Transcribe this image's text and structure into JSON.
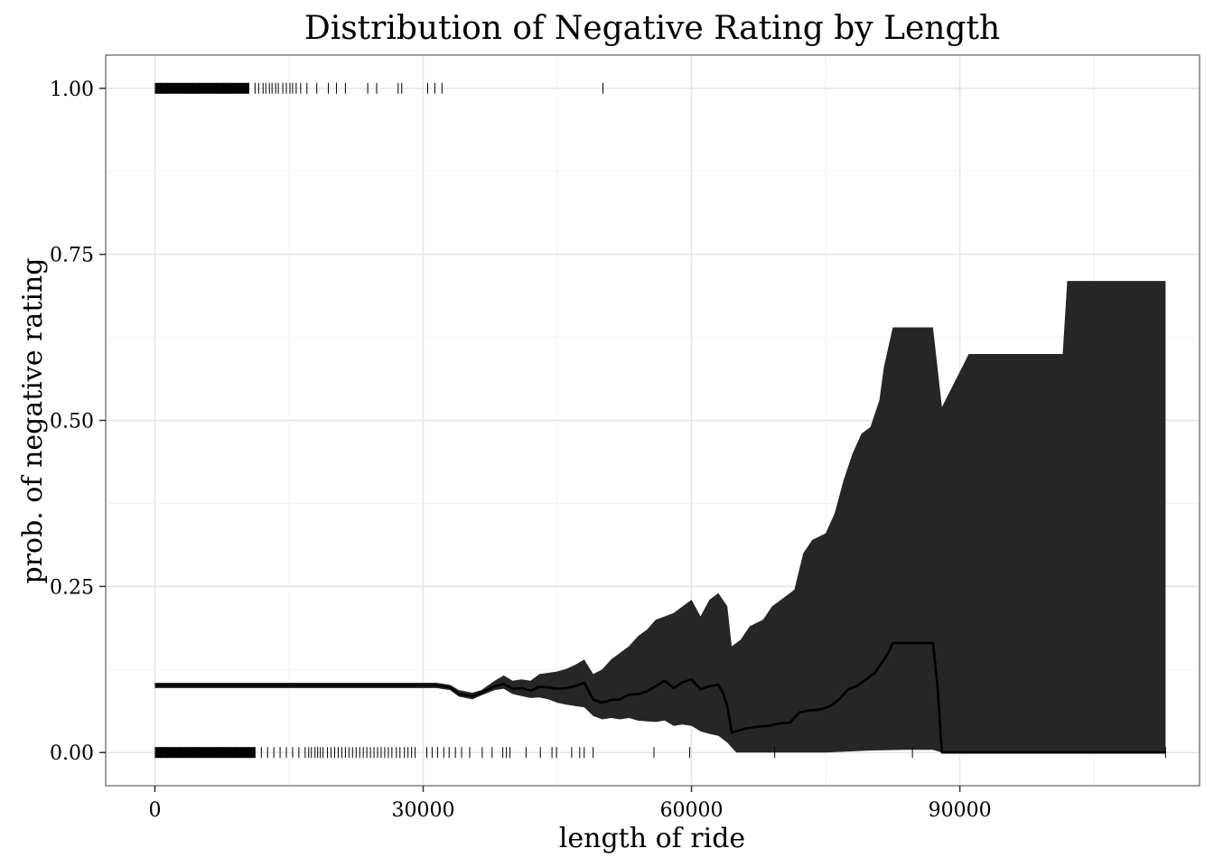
{
  "chart_data": {
    "type": "line",
    "title": "Distribution of Negative Rating by Length",
    "xlabel": "length of ride",
    "ylabel": "prob. of negative rating",
    "xlim": [
      -5500,
      116800
    ],
    "ylim": [
      -0.05,
      1.05
    ],
    "x_ticks": [
      0,
      30000,
      60000,
      90000
    ],
    "x_tick_labels": [
      "0",
      "30000",
      "60000",
      "90000"
    ],
    "y_ticks": [
      0,
      0.25,
      0.5,
      0.75,
      1
    ],
    "y_tick_labels": [
      "0.00",
      "0.25",
      "0.50",
      "0.75",
      "1.00"
    ],
    "grid": true,
    "legend": "none",
    "colors": {
      "ribbon": "#262626",
      "line": "#000000",
      "grid": "#e5e5e5",
      "panel_border": "#7f7f7f"
    },
    "series": [
      {
        "kind": "fit",
        "x": [
          0,
          31500,
          33000,
          34000,
          35500,
          36500,
          38000,
          39000,
          40000,
          41000,
          42000,
          43000,
          44000,
          45000,
          46000,
          47000,
          48000,
          49000,
          50000,
          51000,
          52000,
          53000,
          54000,
          55000,
          56000,
          57000,
          58000,
          59000,
          60000,
          61000,
          62000,
          63000,
          63500,
          64000,
          64500,
          66000,
          67500,
          68500,
          70000,
          71000,
          72000,
          73000,
          74500,
          75500,
          76500,
          77500,
          78500,
          79500,
          80500,
          81500,
          82000,
          82500,
          84500,
          87000,
          87500,
          88000,
          113000
        ],
        "y": [
          0.101,
          0.101,
          0.098,
          0.088,
          0.085,
          0.09,
          0.1,
          0.103,
          0.096,
          0.097,
          0.093,
          0.099,
          0.098,
          0.096,
          0.097,
          0.1,
          0.105,
          0.08,
          0.075,
          0.079,
          0.08,
          0.087,
          0.088,
          0.092,
          0.1,
          0.108,
          0.097,
          0.106,
          0.11,
          0.095,
          0.1,
          0.102,
          0.09,
          0.07,
          0.03,
          0.036,
          0.039,
          0.04,
          0.044,
          0.045,
          0.06,
          0.063,
          0.065,
          0.07,
          0.08,
          0.095,
          0.1,
          0.11,
          0.12,
          0.14,
          0.15,
          0.165,
          0.165,
          0.165,
          0.1,
          0.0,
          0.0
        ]
      },
      {
        "kind": "ribbon_upper",
        "x": [
          0,
          31500,
          33000,
          34000,
          35500,
          36500,
          38000,
          39000,
          40000,
          41000,
          42000,
          43000,
          44000,
          45000,
          46000,
          47000,
          48000,
          49000,
          50000,
          51000,
          52000,
          53000,
          54000,
          55000,
          56000,
          57000,
          58000,
          59000,
          60000,
          61000,
          62000,
          63000,
          64000,
          64500,
          65500,
          66500,
          68000,
          69000,
          70000,
          71500,
          72500,
          73500,
          75000,
          76000,
          77000,
          78000,
          79000,
          80000,
          81000,
          81500,
          82000,
          82500,
          84000,
          87000,
          88000,
          91000,
          101500,
          102000,
          113000
        ],
        "y": [
          0.105,
          0.105,
          0.102,
          0.094,
          0.09,
          0.094,
          0.108,
          0.116,
          0.108,
          0.11,
          0.108,
          0.118,
          0.12,
          0.122,
          0.126,
          0.132,
          0.14,
          0.118,
          0.125,
          0.14,
          0.15,
          0.16,
          0.175,
          0.185,
          0.2,
          0.205,
          0.21,
          0.22,
          0.23,
          0.205,
          0.23,
          0.24,
          0.22,
          0.16,
          0.17,
          0.19,
          0.2,
          0.22,
          0.23,
          0.245,
          0.3,
          0.32,
          0.33,
          0.36,
          0.41,
          0.45,
          0.48,
          0.49,
          0.53,
          0.58,
          0.61,
          0.64,
          0.64,
          0.64,
          0.52,
          0.6,
          0.6,
          0.71,
          0.71
        ]
      },
      {
        "kind": "ribbon_lower",
        "x": [
          0,
          31500,
          33000,
          34000,
          35500,
          36500,
          38000,
          39000,
          40000,
          41000,
          42000,
          43000,
          44000,
          45000,
          46000,
          47000,
          48000,
          49000,
          50000,
          51000,
          52000,
          53000,
          54000,
          55000,
          56000,
          57000,
          58000,
          59000,
          60000,
          61000,
          62000,
          63000,
          64000,
          65000,
          70000,
          75000,
          80000,
          84000,
          87000,
          88000,
          113000
        ],
        "y": [
          0.097,
          0.097,
          0.094,
          0.084,
          0.08,
          0.086,
          0.094,
          0.096,
          0.088,
          0.085,
          0.082,
          0.083,
          0.08,
          0.075,
          0.072,
          0.07,
          0.068,
          0.055,
          0.05,
          0.052,
          0.05,
          0.052,
          0.048,
          0.047,
          0.046,
          0.048,
          0.04,
          0.042,
          0.04,
          0.032,
          0.028,
          0.025,
          0.015,
          0.0,
          0.0,
          0.0,
          0.003,
          0.004,
          0.004,
          0.0,
          0.0
        ]
      },
      {
        "kind": "rug_y1",
        "x": [
          700,
          1400,
          2100,
          2800,
          3500,
          4200,
          4900,
          5600,
          6300,
          7000,
          7700,
          8400,
          9100,
          9800,
          10500,
          11200,
          11600,
          12100,
          12400,
          12800,
          13100,
          13500,
          13800,
          14300,
          14700,
          15100,
          15400,
          15800,
          16300,
          17000,
          18100,
          19400,
          20300,
          21300,
          23800,
          24800,
          27200,
          27600,
          30500,
          31300,
          32100,
          50100
        ]
      },
      {
        "kind": "rug_y0",
        "x": [
          700,
          1400,
          2100,
          2800,
          3500,
          4200,
          4900,
          5600,
          6300,
          7000,
          7700,
          8400,
          9100,
          9800,
          10500,
          11200,
          11900,
          12600,
          13300,
          14000,
          14700,
          15400,
          16100,
          16800,
          17200,
          17500,
          17900,
          18200,
          18500,
          18800,
          19300,
          19700,
          20100,
          20500,
          20900,
          21300,
          21700,
          22100,
          22500,
          22900,
          23300,
          23700,
          24100,
          24500,
          24900,
          25300,
          25700,
          26100,
          26500,
          27000,
          27400,
          27900,
          28300,
          28700,
          29100,
          30400,
          31000,
          31600,
          32300,
          32900,
          33600,
          34300,
          35200,
          36600,
          37700,
          38900,
          39300,
          39700,
          41500,
          43100,
          44400,
          44900,
          46600,
          47500,
          48000,
          49000,
          55800,
          59800,
          69300,
          84700,
          113000
        ]
      }
    ]
  }
}
